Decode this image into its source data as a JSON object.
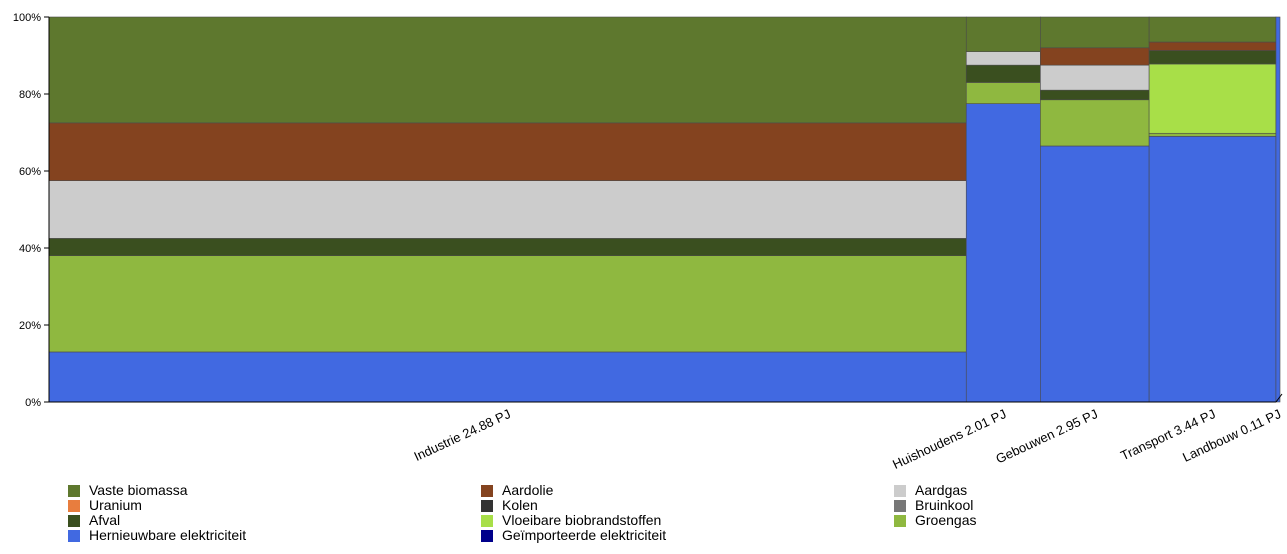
{
  "chart_data": {
    "type": "bar",
    "subtype": "marimekko-100-percent-stacked",
    "ylim": [
      0,
      100
    ],
    "y_ticks": [
      "0%",
      "20%",
      "40%",
      "60%",
      "80%",
      "100%"
    ],
    "grid": false,
    "legend_position": "bottom",
    "categories": [
      {
        "label": "Industrie 24.88 PJ",
        "width_pj": 24.88
      },
      {
        "label": "Huishoudens 2.01 PJ",
        "width_pj": 2.01
      },
      {
        "label": "Gebouwen 2.95 PJ",
        "width_pj": 2.95
      },
      {
        "label": "Transport 3.44 PJ",
        "width_pj": 3.44
      },
      {
        "label": "Landbouw 0.11 PJ",
        "width_pj": 0.11
      }
    ],
    "series": [
      {
        "name": "Hernieuwbare elektriciteit",
        "color": "#4169e1",
        "values": [
          13,
          77.5,
          66.5,
          69,
          100
        ]
      },
      {
        "name": "Groengas",
        "color": "#8fb840",
        "values": [
          25,
          5.5,
          12,
          0.8,
          0
        ]
      },
      {
        "name": "Vloeibare biobrandstoffen",
        "color": "#a8df48",
        "values": [
          0,
          0,
          0,
          18,
          0
        ]
      },
      {
        "name": "Afval",
        "color": "#3a4f1f",
        "values": [
          4.5,
          4.5,
          2.5,
          3.5,
          0
        ]
      },
      {
        "name": "Aardgas",
        "color": "#cccccc",
        "values": [
          15,
          3.5,
          6.5,
          0,
          0
        ]
      },
      {
        "name": "Aardolie",
        "color": "#84431f",
        "values": [
          15,
          0,
          4.5,
          2.2,
          0
        ]
      },
      {
        "name": "Vaste biomassa",
        "color": "#5e782e",
        "values": [
          27.5,
          9,
          8,
          6.5,
          0
        ]
      }
    ]
  },
  "legend": [
    {
      "name": "Vaste biomassa",
      "color": "#5e782e"
    },
    {
      "name": "Uranium",
      "color": "#e87d3e"
    },
    {
      "name": "Afval",
      "color": "#3a4f1f"
    },
    {
      "name": "Hernieuwbare elektriciteit",
      "color": "#4169e1"
    },
    {
      "name": "Aardolie",
      "color": "#84431f"
    },
    {
      "name": "Kolen",
      "color": "#333333"
    },
    {
      "name": "Vloeibare biobrandstoffen",
      "color": "#a8df48"
    },
    {
      "name": "Geïmporteerde elektriciteit",
      "color": "#00008b"
    },
    {
      "name": "Aardgas",
      "color": "#cccccc"
    },
    {
      "name": "Bruinkool",
      "color": "#777777"
    },
    {
      "name": "Groengas",
      "color": "#8fb840"
    }
  ]
}
